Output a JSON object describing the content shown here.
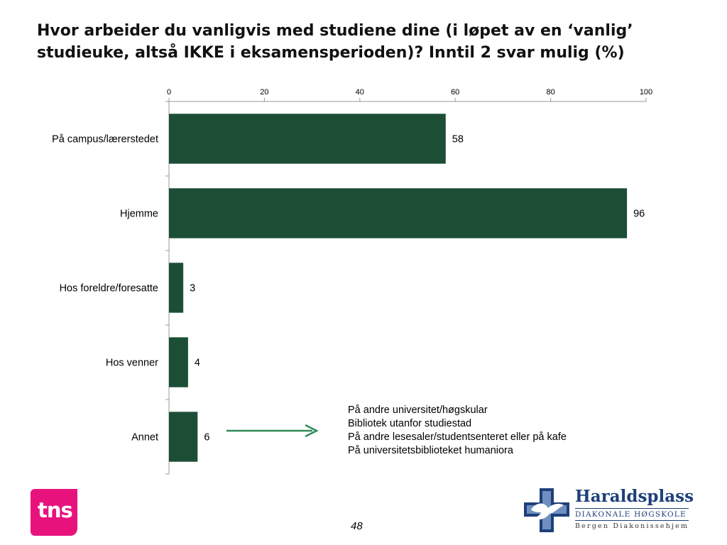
{
  "slide": {
    "title": "Hvor arbeider du vanligvis med studiene dine (i løpet av en ‘vanlig’ studieuke, altså IKKE i eksamensperioden)? Inntil 2 svar mulig (%)",
    "page_number": "48"
  },
  "chart_data": {
    "type": "bar",
    "orientation": "horizontal",
    "categories": [
      "På campus/lærerstedet",
      "Hjemme",
      "Hos foreldre/foresatte",
      "Hos venner",
      "Annet"
    ],
    "values": [
      58,
      96,
      3,
      4,
      6
    ],
    "data_labels": [
      "58",
      "96",
      "3",
      "4",
      "6"
    ],
    "xlim": [
      0,
      100
    ],
    "x_ticks": [
      "0",
      "20",
      "40",
      "60",
      "80",
      "100"
    ],
    "x_axis_position": "top",
    "bar_color": "#1c4e36",
    "grid": false,
    "legend": "none"
  },
  "annotation": {
    "arrow_color": "#2e8b57",
    "lines": [
      "På andre universitet/høgskular",
      "Bibliotek utanfor studiestad",
      "På andre lesesaler/studentsenteret eller på kafe",
      "På universitetsbiblioteket humaniora"
    ]
  },
  "logos": {
    "tns": {
      "text": "tns",
      "color": "#e8127d"
    },
    "haraldsplass": {
      "name": "Haraldsplass",
      "subtitle": "DIAKONALE HØGSKOLE",
      "tagline": "Bergen Diakonissehjem",
      "color": "#1e3f7a"
    }
  }
}
